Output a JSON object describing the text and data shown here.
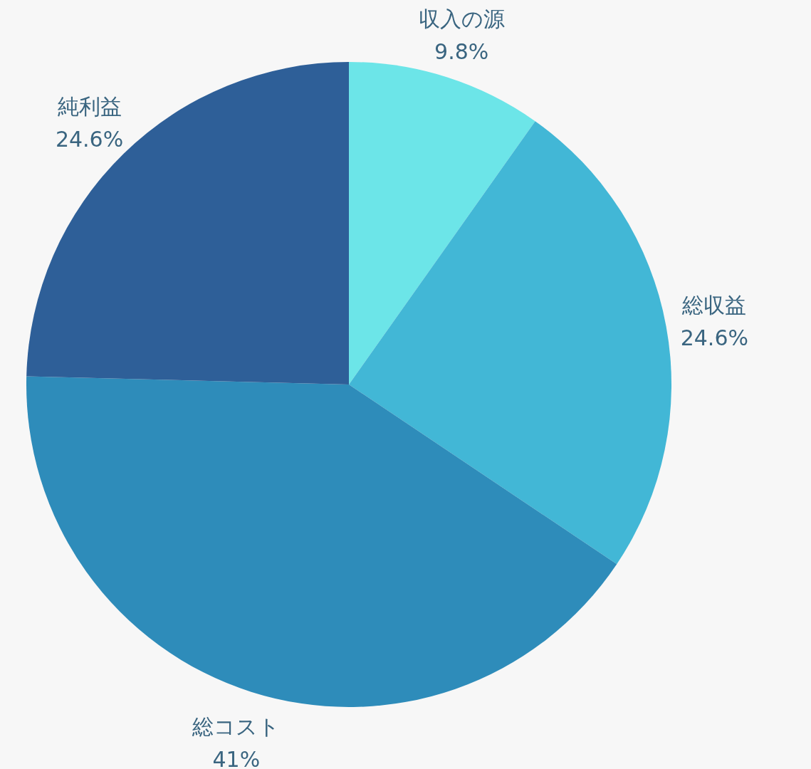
{
  "chart_data": {
    "type": "pie",
    "categories": [
      "収入の源",
      "総収益",
      "総コスト",
      "純利益"
    ],
    "values": [
      9.8,
      24.6,
      41,
      24.6
    ],
    "colors": [
      "#6ce5e8",
      "#42b7d6",
      "#2e8cba",
      "#2e5f98"
    ],
    "value_labels": [
      "9.8%",
      "24.6%",
      "41%",
      "24.6%"
    ]
  }
}
